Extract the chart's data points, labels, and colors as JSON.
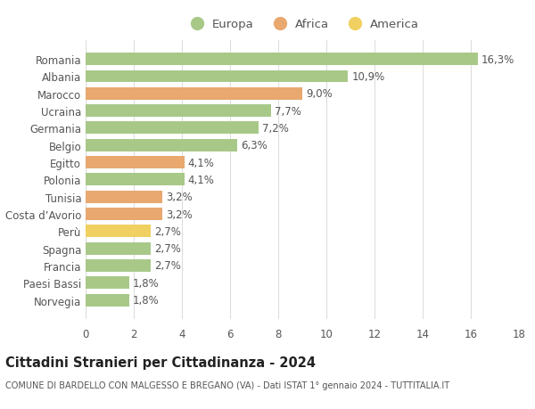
{
  "categories": [
    "Norvegia",
    "Paesi Bassi",
    "Francia",
    "Spagna",
    "Perù",
    "Costa d’Avorio",
    "Tunisia",
    "Polonia",
    "Egitto",
    "Belgio",
    "Germania",
    "Ucraina",
    "Marocco",
    "Albania",
    "Romania"
  ],
  "values": [
    1.8,
    1.8,
    2.7,
    2.7,
    2.7,
    3.2,
    3.2,
    4.1,
    4.1,
    6.3,
    7.2,
    7.7,
    9.0,
    10.9,
    16.3
  ],
  "labels": [
    "1,8%",
    "1,8%",
    "2,7%",
    "2,7%",
    "2,7%",
    "3,2%",
    "3,2%",
    "4,1%",
    "4,1%",
    "6,3%",
    "7,2%",
    "7,7%",
    "9,0%",
    "10,9%",
    "16,3%"
  ],
  "colors": [
    "#a8c888",
    "#a8c888",
    "#a8c888",
    "#a8c888",
    "#f0d060",
    "#e8a870",
    "#e8a870",
    "#a8c888",
    "#e8a870",
    "#a8c888",
    "#a8c888",
    "#a8c888",
    "#e8a870",
    "#a8c888",
    "#a8c888"
  ],
  "continent_colors": {
    "Europa": "#a8c888",
    "Africa": "#e8a870",
    "America": "#f0d060"
  },
  "title": "Cittadini Stranieri per Cittadinanza - 2024",
  "subtitle": "COMUNE DI BARDELLO CON MALGESSO E BREGANO (VA) - Dati ISTAT 1° gennaio 2024 - TUTTITALIA.IT",
  "xlim": [
    0,
    18
  ],
  "xticks": [
    0,
    2,
    4,
    6,
    8,
    10,
    12,
    14,
    16,
    18
  ],
  "background_color": "#ffffff",
  "grid_color": "#dddddd",
  "bar_height": 0.72,
  "label_fontsize": 8.5,
  "title_fontsize": 10.5,
  "subtitle_fontsize": 7.0,
  "tick_fontsize": 8.5,
  "legend_fontsize": 9.5,
  "text_color": "#555555"
}
